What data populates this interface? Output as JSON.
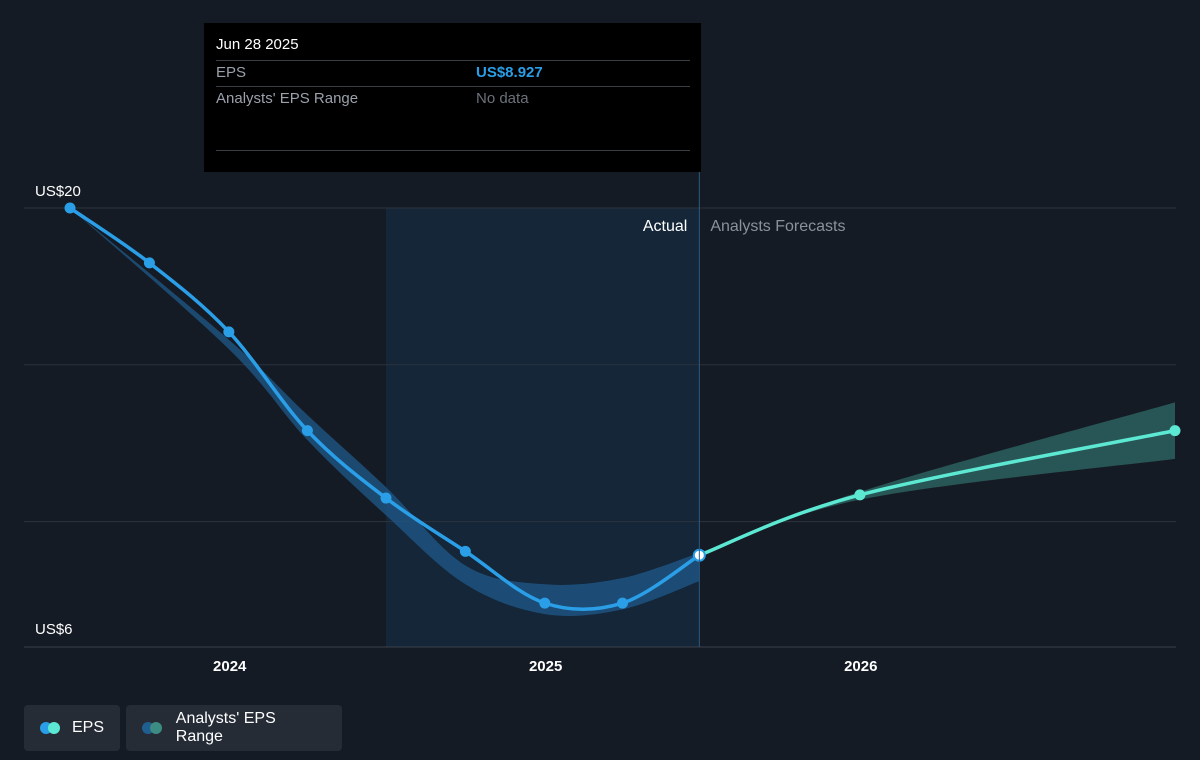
{
  "tooltip": {
    "date": "Jun 28 2025",
    "eps_label": "EPS",
    "eps_value": "US$8.927",
    "range_label": "Analysts' EPS Range",
    "range_value": "No data"
  },
  "labels": {
    "actual": "Actual",
    "forecast": "Analysts Forecasts"
  },
  "legend": [
    {
      "label": "EPS",
      "color1": "#2a9fe8",
      "color2": "#5ce8d2"
    },
    {
      "label": "Analysts' EPS Range",
      "color1": "#1f5f8f",
      "color2": "#3d8c84"
    }
  ],
  "colors": {
    "background": "#151b24",
    "eps_actual": "#2a9fe8",
    "eps_forecast": "#5ce8d2",
    "range_actual": "#1f5a8a",
    "range_forecast": "#2f6b67",
    "highlight": "#142638"
  },
  "chart_data": {
    "type": "line",
    "y_tick_labels": [
      "US$20",
      "US$6"
    ],
    "ylim": [
      6,
      20
    ],
    "x_tick_labels": [
      "2024",
      "2025",
      "2026"
    ],
    "xlim": [
      "2023-06-30",
      "2026-12-31"
    ],
    "grid": true,
    "series": [
      {
        "name": "EPS",
        "kind": "actual",
        "points": [
          [
            "2023-06-30",
            20.0
          ],
          [
            "2023-09-30",
            18.25
          ],
          [
            "2023-12-31",
            16.05
          ],
          [
            "2024-03-31",
            12.9
          ],
          [
            "2024-06-30",
            10.75
          ],
          [
            "2024-09-30",
            9.05
          ],
          [
            "2024-12-31",
            7.4
          ],
          [
            "2025-03-31",
            7.4
          ],
          [
            "2025-06-28",
            8.927
          ]
        ]
      },
      {
        "name": "EPS",
        "kind": "forecast",
        "points": [
          [
            "2025-06-28",
            8.927
          ],
          [
            "2025-12-31",
            10.85
          ],
          [
            "2026-12-31",
            12.9
          ]
        ]
      }
    ],
    "range": {
      "actual": {
        "dates": [
          "2023-06-30",
          "2023-12-31",
          "2024-03-31",
          "2024-06-30",
          "2024-09-30",
          "2024-12-31",
          "2025-03-31",
          "2025-06-28"
        ],
        "high": [
          20.0,
          15.8,
          13.4,
          11.1,
          8.6,
          8.0,
          8.2,
          9.0
        ],
        "low": [
          20.0,
          15.5,
          12.6,
          10.2,
          8.0,
          7.05,
          7.2,
          8.1
        ]
      },
      "forecast": {
        "dates": [
          "2025-06-28",
          "2025-12-31",
          "2026-12-31"
        ],
        "high": [
          8.927,
          10.95,
          13.8
        ],
        "low": [
          8.927,
          10.7,
          12.0
        ]
      }
    }
  }
}
